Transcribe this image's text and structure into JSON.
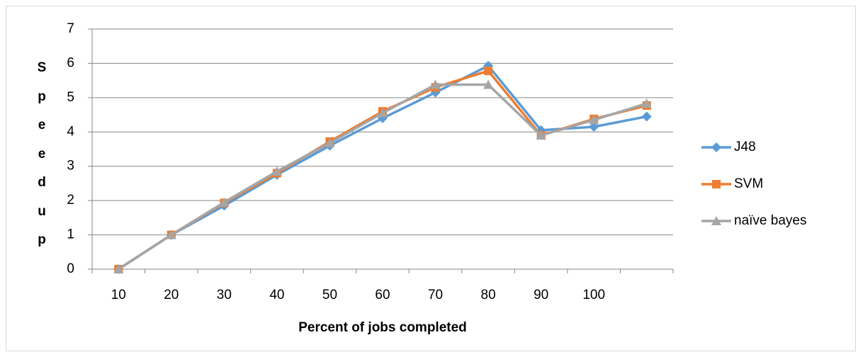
{
  "chart_data": {
    "type": "line",
    "x_label": "Percent of jobs completed",
    "y_label": "Speedup",
    "categories": [
      "10",
      "20",
      "30",
      "40",
      "50",
      "60",
      "70",
      "80",
      "90",
      "100",
      null
    ],
    "series": [
      {
        "name": "J48",
        "color": "#5b9bd5",
        "marker": "diamond",
        "values": [
          0,
          1,
          1.85,
          2.75,
          3.6,
          4.4,
          5.15,
          5.93,
          4.05,
          4.15,
          4.45
        ]
      },
      {
        "name": "SVM",
        "color": "#ed7d31",
        "marker": "square",
        "values": [
          0,
          1,
          1.93,
          2.8,
          3.72,
          4.6,
          5.3,
          5.78,
          3.9,
          4.38,
          4.77
        ]
      },
      {
        "name": "naïve bayes",
        "color": "#a5a5a5",
        "marker": "triangle",
        "values": [
          0,
          1,
          1.95,
          2.85,
          3.68,
          4.55,
          5.38,
          5.38,
          3.9,
          4.35,
          4.83
        ]
      }
    ],
    "ylim": [
      0,
      7
    ],
    "yticks": [
      0,
      1,
      2,
      3,
      4,
      5,
      6,
      7
    ],
    "grid": true,
    "legend": "right"
  }
}
